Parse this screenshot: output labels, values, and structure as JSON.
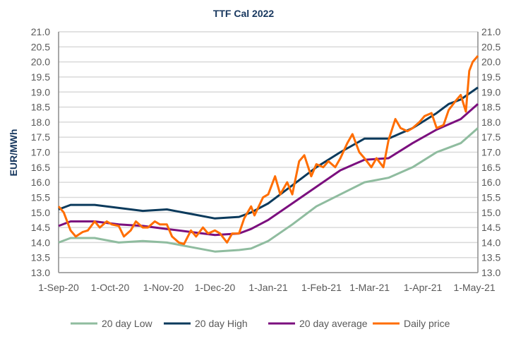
{
  "chart_data": {
    "type": "line",
    "title": "TTF Cal 2022",
    "ylabel": "EUR/MWh",
    "xlabel": "",
    "ylim": [
      13.0,
      21.0
    ],
    "xlim": [
      "2020-09-01",
      "2021-05-03"
    ],
    "yticks": [
      "13.0",
      "13.5",
      "14.0",
      "14.5",
      "15.0",
      "15.5",
      "16.0",
      "16.5",
      "17.0",
      "17.5",
      "18.0",
      "18.5",
      "19.0",
      "19.5",
      "20.0",
      "20.5",
      "21.0"
    ],
    "xticks": [
      {
        "date": "2020-09-01",
        "label": "1-Sep-20"
      },
      {
        "date": "2020-10-01",
        "label": "1-Oct-20"
      },
      {
        "date": "2020-11-01",
        "label": "1-Nov-20"
      },
      {
        "date": "2020-12-01",
        "label": "1-Dec-20"
      },
      {
        "date": "2021-01-01",
        "label": "1-Jan-21"
      },
      {
        "date": "2021-02-01",
        "label": "1-Feb-21"
      },
      {
        "date": "2021-03-01",
        "label": "1-Mar-21"
      },
      {
        "date": "2021-04-01",
        "label": "1-Apr-21"
      },
      {
        "date": "2021-05-01",
        "label": "1-May-21"
      }
    ],
    "grid": true,
    "legend": "bottom",
    "series": [
      {
        "name": "20 day Low",
        "color": "#8fbc9f",
        "points": [
          [
            "2020-09-01",
            14.0
          ],
          [
            "2020-09-08",
            14.15
          ],
          [
            "2020-09-22",
            14.15
          ],
          [
            "2020-10-06",
            14.0
          ],
          [
            "2020-10-20",
            14.05
          ],
          [
            "2020-11-03",
            14.0
          ],
          [
            "2020-11-17",
            13.85
          ],
          [
            "2020-12-01",
            13.7
          ],
          [
            "2020-12-15",
            13.75
          ],
          [
            "2020-12-22",
            13.8
          ],
          [
            "2021-01-01",
            14.05
          ],
          [
            "2021-01-15",
            14.6
          ],
          [
            "2021-01-29",
            15.2
          ],
          [
            "2021-02-12",
            15.6
          ],
          [
            "2021-02-26",
            16.0
          ],
          [
            "2021-03-12",
            16.15
          ],
          [
            "2021-03-26",
            16.5
          ],
          [
            "2021-04-09",
            17.0
          ],
          [
            "2021-04-23",
            17.3
          ],
          [
            "2021-05-03",
            17.8
          ]
        ]
      },
      {
        "name": "20 day High",
        "color": "#0b3a5c",
        "points": [
          [
            "2020-09-01",
            15.1
          ],
          [
            "2020-09-08",
            15.25
          ],
          [
            "2020-09-22",
            15.25
          ],
          [
            "2020-10-06",
            15.15
          ],
          [
            "2020-10-20",
            15.05
          ],
          [
            "2020-11-03",
            15.1
          ],
          [
            "2020-11-17",
            14.95
          ],
          [
            "2020-12-01",
            14.8
          ],
          [
            "2020-12-15",
            14.85
          ],
          [
            "2020-12-22",
            15.0
          ],
          [
            "2021-01-01",
            15.3
          ],
          [
            "2021-01-15",
            15.9
          ],
          [
            "2021-01-29",
            16.5
          ],
          [
            "2021-02-12",
            17.0
          ],
          [
            "2021-02-26",
            17.45
          ],
          [
            "2021-03-12",
            17.45
          ],
          [
            "2021-03-26",
            17.8
          ],
          [
            "2021-04-09",
            18.3
          ],
          [
            "2021-04-16",
            18.6
          ],
          [
            "2021-04-23",
            18.75
          ],
          [
            "2021-05-03",
            19.15
          ]
        ]
      },
      {
        "name": "20 day average",
        "color": "#7b0f7e",
        "points": [
          [
            "2020-09-01",
            14.55
          ],
          [
            "2020-09-08",
            14.7
          ],
          [
            "2020-09-22",
            14.7
          ],
          [
            "2020-10-06",
            14.6
          ],
          [
            "2020-10-20",
            14.55
          ],
          [
            "2020-11-03",
            14.45
          ],
          [
            "2020-11-17",
            14.35
          ],
          [
            "2020-12-01",
            14.25
          ],
          [
            "2020-12-15",
            14.3
          ],
          [
            "2020-12-22",
            14.45
          ],
          [
            "2021-01-01",
            14.75
          ],
          [
            "2021-01-15",
            15.3
          ],
          [
            "2021-01-29",
            15.85
          ],
          [
            "2021-02-12",
            16.4
          ],
          [
            "2021-02-26",
            16.75
          ],
          [
            "2021-03-12",
            16.8
          ],
          [
            "2021-03-26",
            17.3
          ],
          [
            "2021-04-09",
            17.75
          ],
          [
            "2021-04-23",
            18.1
          ],
          [
            "2021-05-03",
            18.6
          ]
        ]
      },
      {
        "name": "Daily price",
        "color": "#ff6d00",
        "points": [
          [
            "2020-09-01",
            15.2
          ],
          [
            "2020-09-04",
            15.0
          ],
          [
            "2020-09-08",
            14.4
          ],
          [
            "2020-09-11",
            14.2
          ],
          [
            "2020-09-15",
            14.35
          ],
          [
            "2020-09-18",
            14.4
          ],
          [
            "2020-09-22",
            14.7
          ],
          [
            "2020-09-25",
            14.5
          ],
          [
            "2020-09-29",
            14.7
          ],
          [
            "2020-10-02",
            14.6
          ],
          [
            "2020-10-06",
            14.55
          ],
          [
            "2020-10-09",
            14.2
          ],
          [
            "2020-10-13",
            14.4
          ],
          [
            "2020-10-16",
            14.7
          ],
          [
            "2020-10-20",
            14.5
          ],
          [
            "2020-10-23",
            14.5
          ],
          [
            "2020-10-27",
            14.7
          ],
          [
            "2020-10-30",
            14.6
          ],
          [
            "2020-11-03",
            14.6
          ],
          [
            "2020-11-06",
            14.2
          ],
          [
            "2020-11-10",
            14.0
          ],
          [
            "2020-11-13",
            13.95
          ],
          [
            "2020-11-17",
            14.4
          ],
          [
            "2020-11-20",
            14.2
          ],
          [
            "2020-11-24",
            14.5
          ],
          [
            "2020-11-27",
            14.3
          ],
          [
            "2020-12-01",
            14.4
          ],
          [
            "2020-12-04",
            14.3
          ],
          [
            "2020-12-08",
            14.0
          ],
          [
            "2020-12-11",
            14.3
          ],
          [
            "2020-12-15",
            14.3
          ],
          [
            "2020-12-18",
            14.8
          ],
          [
            "2020-12-22",
            15.2
          ],
          [
            "2020-12-24",
            14.9
          ],
          [
            "2020-12-29",
            15.5
          ],
          [
            "2021-01-01",
            15.6
          ],
          [
            "2021-01-05",
            16.2
          ],
          [
            "2021-01-08",
            15.6
          ],
          [
            "2021-01-12",
            16.0
          ],
          [
            "2021-01-15",
            15.6
          ],
          [
            "2021-01-19",
            16.7
          ],
          [
            "2021-01-22",
            16.9
          ],
          [
            "2021-01-26",
            16.2
          ],
          [
            "2021-01-29",
            16.6
          ],
          [
            "2021-02-02",
            16.5
          ],
          [
            "2021-02-05",
            16.7
          ],
          [
            "2021-02-09",
            16.5
          ],
          [
            "2021-02-12",
            16.8
          ],
          [
            "2021-02-16",
            17.3
          ],
          [
            "2021-02-19",
            17.6
          ],
          [
            "2021-02-23",
            17.0
          ],
          [
            "2021-02-26",
            16.8
          ],
          [
            "2021-03-02",
            16.5
          ],
          [
            "2021-03-05",
            16.8
          ],
          [
            "2021-03-09",
            16.5
          ],
          [
            "2021-03-12",
            17.4
          ],
          [
            "2021-03-16",
            18.1
          ],
          [
            "2021-03-19",
            17.8
          ],
          [
            "2021-03-23",
            17.7
          ],
          [
            "2021-03-26",
            17.8
          ],
          [
            "2021-03-30",
            18.0
          ],
          [
            "2021-04-02",
            18.2
          ],
          [
            "2021-04-06",
            18.3
          ],
          [
            "2021-04-09",
            17.8
          ],
          [
            "2021-04-13",
            17.9
          ],
          [
            "2021-04-16",
            18.4
          ],
          [
            "2021-04-20",
            18.7
          ],
          [
            "2021-04-23",
            18.9
          ],
          [
            "2021-04-26",
            18.35
          ],
          [
            "2021-04-28",
            19.7
          ],
          [
            "2021-04-30",
            20.0
          ],
          [
            "2021-05-03",
            20.2
          ]
        ]
      }
    ]
  }
}
